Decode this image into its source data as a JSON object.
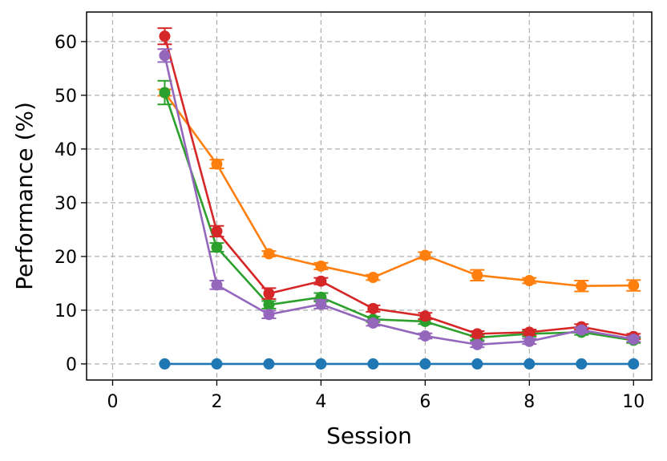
{
  "chart_data": {
    "type": "line",
    "title": "",
    "xlabel": "Session",
    "ylabel": "Performance (%)",
    "xlim": [
      -0.5,
      10.35
    ],
    "ylim": [
      -3,
      65.5
    ],
    "xticks": [
      0,
      2,
      4,
      6,
      8,
      10
    ],
    "yticks": [
      0,
      10,
      20,
      30,
      40,
      50,
      60
    ],
    "grid": true,
    "x": [
      1,
      2,
      3,
      4,
      5,
      6,
      7,
      8,
      9,
      10
    ],
    "series": [
      {
        "color": "#1f77b4",
        "values": [
          0,
          0,
          0,
          0,
          0,
          0,
          0,
          0,
          0,
          0
        ],
        "errors": [
          0,
          0,
          0,
          0,
          0,
          0,
          0,
          0,
          0,
          0
        ]
      },
      {
        "color": "#ff7f0e",
        "values": [
          50.5,
          37.2,
          20.5,
          18.2,
          16.1,
          20.2,
          16.5,
          15.5,
          14.5,
          14.6
        ],
        "errors": [
          0.6,
          0.8,
          0.5,
          0.6,
          0.5,
          0.6,
          1.0,
          0.5,
          1.0,
          1.0
        ]
      },
      {
        "color": "#2ca02c",
        "values": [
          50.5,
          21.7,
          11.0,
          12.4,
          8.3,
          7.9,
          4.9,
          5.6,
          5.9,
          4.4
        ],
        "errors": [
          2.2,
          0.8,
          0.7,
          0.8,
          0.5,
          0.5,
          0.5,
          0.5,
          0.5,
          0.5
        ]
      },
      {
        "color": "#d62728",
        "values": [
          61.0,
          24.7,
          13.1,
          15.4,
          10.3,
          8.9,
          5.6,
          5.9,
          6.9,
          5.1
        ],
        "errors": [
          1.5,
          1.0,
          1.0,
          0.6,
          0.6,
          0.6,
          0.5,
          0.5,
          0.5,
          0.5
        ]
      },
      {
        "color": "#9467bd",
        "values": [
          57.4,
          14.7,
          9.2,
          11.1,
          7.6,
          5.2,
          3.6,
          4.2,
          6.3,
          4.6
        ],
        "errors": [
          1.2,
          0.8,
          0.7,
          0.8,
          0.5,
          0.5,
          0.5,
          0.5,
          0.5,
          0.5
        ]
      }
    ]
  }
}
